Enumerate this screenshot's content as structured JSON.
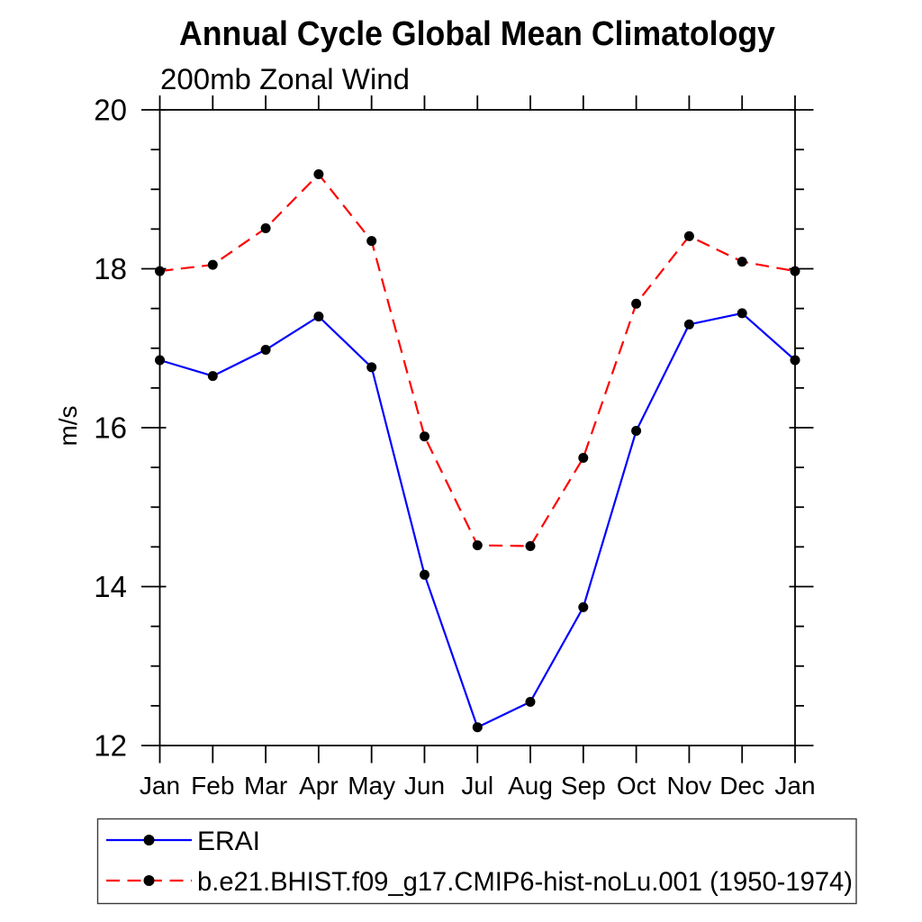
{
  "page": {
    "background": "#ffffff"
  },
  "chart_data": {
    "type": "line",
    "title": "Annual Cycle Global Mean Climatology",
    "subtitle": "200mb Zonal Wind",
    "ylabel": "m/s",
    "categories": [
      "Jan",
      "Feb",
      "Mar",
      "Apr",
      "May",
      "Jun",
      "Jul",
      "Aug",
      "Sep",
      "Oct",
      "Nov",
      "Dec",
      "Jan"
    ],
    "ylim": [
      12,
      20
    ],
    "y_major_ticks": [
      12,
      14,
      16,
      18,
      20
    ],
    "y_minor_step": 0.5,
    "grid": false,
    "legend_position": "bottom-left",
    "axis_color": "#000000",
    "marker_color": "#000000",
    "series": [
      {
        "name": "ERAI",
        "color": "#0000ff",
        "line_style": "solid",
        "marker": "filled-circle",
        "values": [
          16.85,
          16.65,
          16.98,
          17.4,
          16.76,
          14.15,
          12.23,
          12.55,
          13.74,
          15.96,
          17.3,
          17.44,
          16.85
        ]
      },
      {
        "name": "b.e21.BHIST.f09_g17.CMIP6-hist-noLu.001 (1950-1974)",
        "color": "#ff0000",
        "line_style": "dashed",
        "marker": "filled-circle",
        "values": [
          17.97,
          18.05,
          18.51,
          19.19,
          18.35,
          15.89,
          14.52,
          14.51,
          15.62,
          17.56,
          18.41,
          18.09,
          17.97
        ]
      }
    ]
  }
}
